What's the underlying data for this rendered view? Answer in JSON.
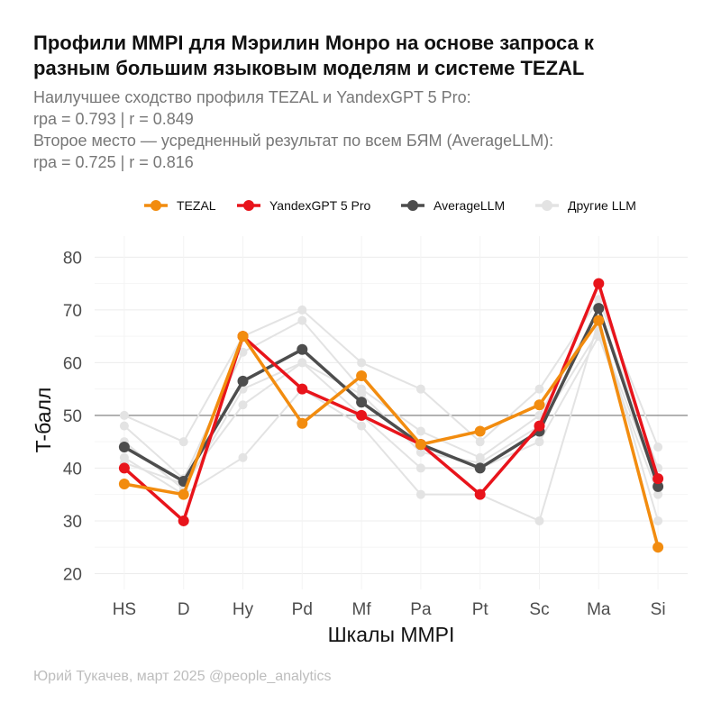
{
  "title_lines": [
    "Профили MMPI для Мэрилин Монро на основе запроса к",
    "разным большим языковым моделям и системе TEZAL"
  ],
  "subtitle_lines": [
    "Наилучшее сходство профиля TEZAL и YandexGPT 5 Pro:",
    "rpa = 0.793 | r = 0.849",
    "Второе место — усредненный результат по всем БЯМ (AverageLLM):",
    "rpa = 0.725 | r = 0.816"
  ],
  "caption": "Юрий Тукачев, март 2025 @people_analytics",
  "chart_data": {
    "type": "line",
    "categories": [
      "HS",
      "D",
      "Hy",
      "Pd",
      "Mf",
      "Pa",
      "Pt",
      "Sc",
      "Ma",
      "Si"
    ],
    "xlabel": "Шкалы MMPI",
    "ylabel": "T-балл",
    "ylim": [
      17,
      84
    ],
    "yticks": [
      20,
      30,
      40,
      50,
      60,
      70,
      80
    ],
    "reference_line": 50,
    "grid": true,
    "legend_position": "top",
    "series": [
      {
        "name": "TEZAL",
        "color": "#F28C0F",
        "values": [
          37,
          35,
          65,
          48.5,
          57.5,
          44.5,
          47,
          52,
          68,
          25
        ]
      },
      {
        "name": "YandexGPT 5 Pro",
        "color": "#E8141B",
        "values": [
          40,
          30,
          65,
          55,
          50,
          44.5,
          35,
          48,
          75,
          38
        ]
      },
      {
        "name": "AverageLLM",
        "color": "#4D4D4D",
        "values": [
          44,
          37.5,
          56.5,
          62.5,
          52.5,
          44.5,
          40,
          47,
          70.3,
          36.5
        ]
      },
      {
        "name": "Другие LLM",
        "color": "#E3E3E3",
        "values": null
      }
    ],
    "other_llm_series": [
      {
        "values": [
          50,
          45,
          65,
          70,
          60,
          55,
          45,
          55,
          72,
          44
        ]
      },
      {
        "values": [
          48,
          38,
          62,
          68,
          55,
          47,
          42,
          50,
          70,
          40
        ]
      },
      {
        "values": [
          45,
          36,
          55,
          60,
          50,
          40,
          40,
          45,
          65,
          35
        ]
      },
      {
        "values": [
          42,
          35,
          42,
          55,
          48,
          35,
          35,
          30,
          68,
          30
        ]
      },
      {
        "values": [
          41,
          37,
          52,
          60,
          54,
          43,
          41,
          48,
          66,
          37
        ]
      }
    ]
  }
}
